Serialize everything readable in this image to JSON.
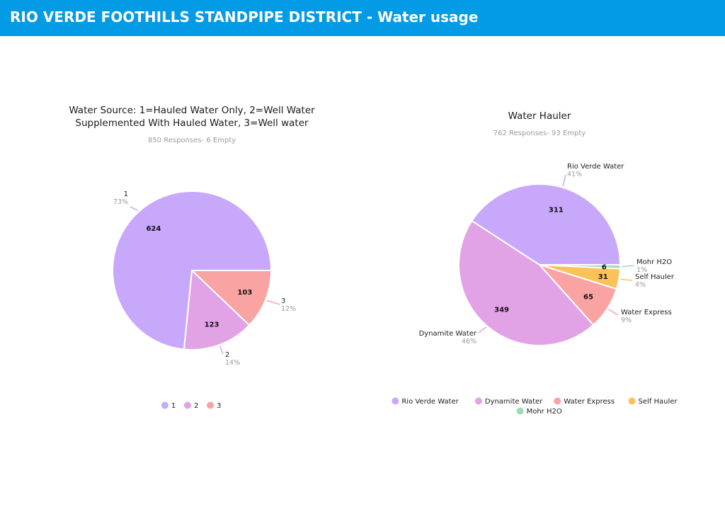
{
  "header": {
    "title": "RIO VERDE FOOTHILLS STANDPIPE DISTRICT - Water usage"
  },
  "chart_data": [
    {
      "type": "pie",
      "title_lines": [
        "Water Source: 1=Hauled Water Only, 2=Well Water",
        "Supplemented With Hauled Water, 3=Well water"
      ],
      "subtitle": "850 Responses- 6 Empty",
      "slices": [
        {
          "label": "1",
          "value": 624,
          "percent": "73%",
          "color": "#c8a8fb"
        },
        {
          "label": "2",
          "value": 123,
          "percent": "14%",
          "color": "#e2a2e6"
        },
        {
          "label": "3",
          "value": 103,
          "percent": "12%",
          "color": "#f9a3a3"
        }
      ],
      "legend": "bottom"
    },
    {
      "type": "pie",
      "title_lines": [
        "Water Hauler"
      ],
      "subtitle": "762 Responses- 93 Empty",
      "slices": [
        {
          "label": "Rio Verde Water",
          "value": 311,
          "percent": "41%",
          "color": "#c8a8fb"
        },
        {
          "label": "Dynamite Water",
          "value": 349,
          "percent": "46%",
          "color": "#e2a2e6"
        },
        {
          "label": "Water Express",
          "value": 65,
          "percent": "9%",
          "color": "#f9a3a3"
        },
        {
          "label": "Self Hauler",
          "value": 31,
          "percent": "4%",
          "color": "#fbc25a"
        },
        {
          "label": "Mohr H2O",
          "value": 6,
          "percent": "1%",
          "color": "#9edbb6"
        }
      ],
      "legend": "bottom"
    }
  ]
}
